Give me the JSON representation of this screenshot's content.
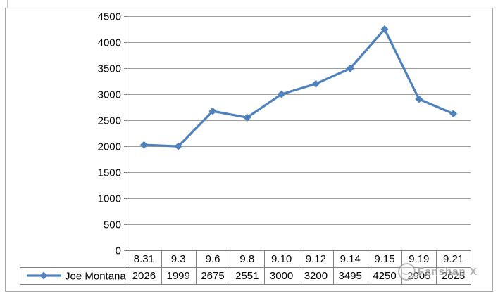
{
  "chart_data": {
    "type": "line",
    "title": "",
    "xlabel": "",
    "ylabel": "",
    "categories": [
      "8.31",
      "9.3",
      "9.6",
      "9.8",
      "9.10",
      "9.12",
      "9.14",
      "9.15",
      "9.19",
      "9.21"
    ],
    "series": [
      {
        "name": "Joe Montana",
        "color": "#4F81BD",
        "marker": "diamond",
        "values": [
          2026,
          1999,
          2675,
          2551,
          3000,
          3200,
          3495,
          4250,
          2905,
          2625
        ]
      }
    ],
    "ylim": [
      0,
      4500
    ],
    "y_tick_step": 500,
    "y_tick_labels": [
      "0",
      "500",
      "1000",
      "1500",
      "2000",
      "2500",
      "3000",
      "3500",
      "4000",
      "4500"
    ],
    "grid": true,
    "legend_position": "left-of-data-table",
    "data_table_shown": true
  },
  "watermark": {
    "icon": "round-doodle-logo",
    "text": "Fanshan X"
  },
  "colors": {
    "series_blue": "#4F81BD",
    "gridline": "#9e9e9e",
    "axis_and_table_border": "#808080",
    "frame_border": "#a6a6a6",
    "text": "#000000",
    "watermark_grey": "#7d7d7d",
    "background": "#ffffff"
  }
}
